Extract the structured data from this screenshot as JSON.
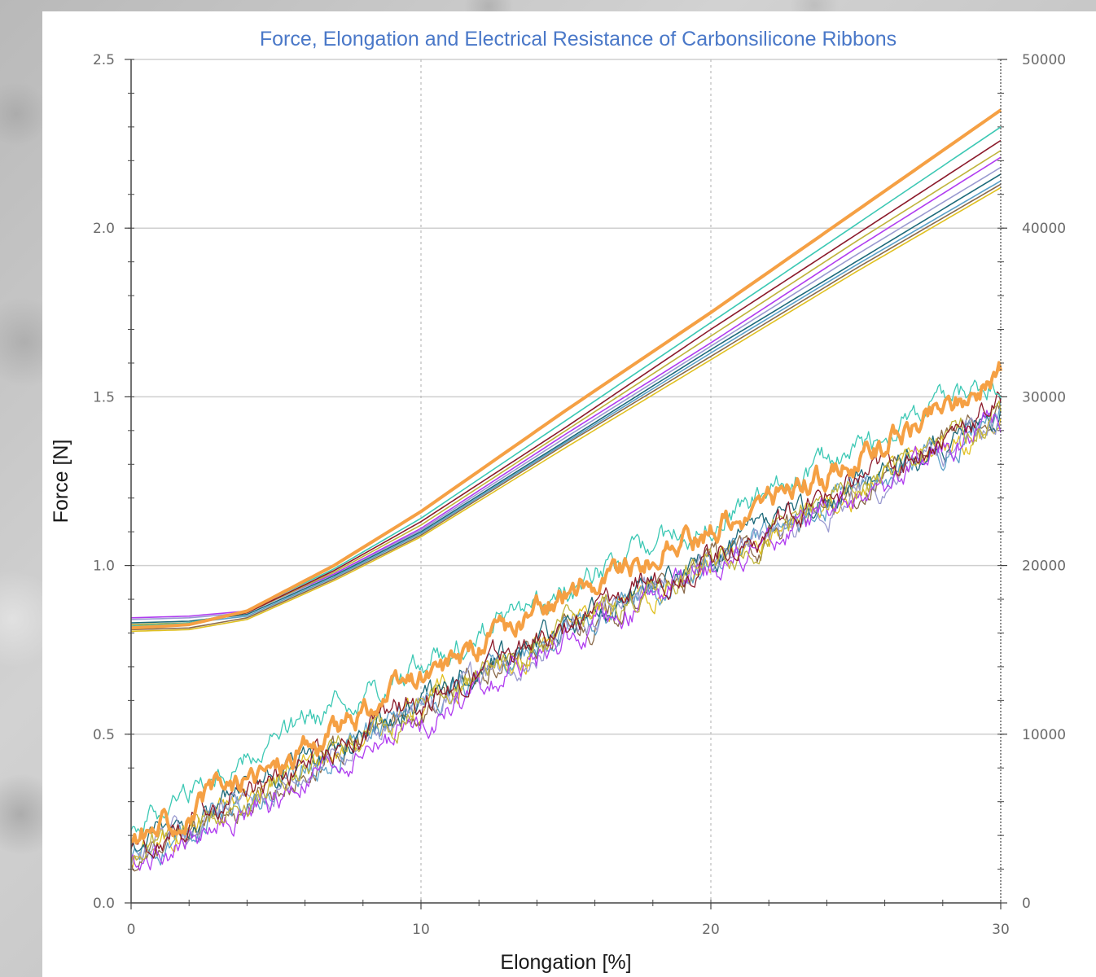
{
  "chart_data": {
    "type": "line",
    "title": "Force, Elongation and Electrical Resistance of Carbonsilicone Ribbons",
    "xlabel": "Elongation [%]",
    "ylabel": "Force [N]",
    "y2label": "",
    "xlim": [
      0,
      30
    ],
    "ylim": [
      0,
      2.5
    ],
    "y2lim": [
      0,
      50000
    ],
    "x_ticks": [
      "0",
      "10",
      "20",
      "30"
    ],
    "y_ticks": [
      "0.0",
      "0.5",
      "1.0",
      "1.5",
      "2.0",
      "2.5"
    ],
    "y2_ticks": [
      "0",
      "10000",
      "20000",
      "30000",
      "40000",
      "50000"
    ],
    "grid": {
      "horizontal": true,
      "vertical_dotted": true
    },
    "force_series": [
      {
        "color": "#f5a044",
        "values": [
          [
            0,
            0.815
          ],
          [
            2,
            0.825
          ],
          [
            4,
            0.865
          ],
          [
            7,
            1.0
          ],
          [
            10,
            1.16
          ],
          [
            15,
            1.46
          ],
          [
            20,
            1.75
          ],
          [
            25,
            2.05
          ],
          [
            30,
            2.35
          ]
        ]
      },
      {
        "color": "#3cc8b4",
        "values": [
          [
            0,
            0.82
          ],
          [
            2,
            0.83
          ],
          [
            4,
            0.865
          ],
          [
            7,
            0.99
          ],
          [
            10,
            1.14
          ],
          [
            15,
            1.43
          ],
          [
            20,
            1.72
          ],
          [
            25,
            2.01
          ],
          [
            30,
            2.3
          ]
        ]
      },
      {
        "color": "#8b1a2b",
        "values": [
          [
            0,
            0.82
          ],
          [
            2,
            0.83
          ],
          [
            4,
            0.86
          ],
          [
            7,
            0.985
          ],
          [
            10,
            1.13
          ],
          [
            15,
            1.41
          ],
          [
            20,
            1.7
          ],
          [
            25,
            1.98
          ],
          [
            30,
            2.26
          ]
        ]
      },
      {
        "color": "#bfb43a",
        "values": [
          [
            0,
            0.825
          ],
          [
            2,
            0.83
          ],
          [
            4,
            0.86
          ],
          [
            7,
            0.98
          ],
          [
            10,
            1.12
          ],
          [
            15,
            1.4
          ],
          [
            20,
            1.68
          ],
          [
            25,
            1.96
          ],
          [
            30,
            2.23
          ]
        ]
      },
      {
        "color": "#b03cf0",
        "values": [
          [
            0,
            0.845
          ],
          [
            2,
            0.85
          ],
          [
            4,
            0.865
          ],
          [
            7,
            0.975
          ],
          [
            10,
            1.11
          ],
          [
            15,
            1.39
          ],
          [
            20,
            1.66
          ],
          [
            25,
            1.94
          ],
          [
            30,
            2.21
          ]
        ]
      },
      {
        "color": "#9a9ad0",
        "values": [
          [
            0,
            0.84
          ],
          [
            2,
            0.845
          ],
          [
            4,
            0.86
          ],
          [
            7,
            0.975
          ],
          [
            10,
            1.105
          ],
          [
            15,
            1.38
          ],
          [
            20,
            1.65
          ],
          [
            25,
            1.92
          ],
          [
            30,
            2.18
          ]
        ]
      },
      {
        "color": "#1c6a7a",
        "values": [
          [
            0,
            0.83
          ],
          [
            2,
            0.835
          ],
          [
            4,
            0.855
          ],
          [
            7,
            0.97
          ],
          [
            10,
            1.1
          ],
          [
            15,
            1.37
          ],
          [
            20,
            1.64
          ],
          [
            25,
            1.9
          ],
          [
            30,
            2.16
          ]
        ]
      },
      {
        "color": "#5aa0c8",
        "values": [
          [
            0,
            0.825
          ],
          [
            2,
            0.83
          ],
          [
            4,
            0.85
          ],
          [
            7,
            0.965
          ],
          [
            10,
            1.095
          ],
          [
            15,
            1.365
          ],
          [
            20,
            1.63
          ],
          [
            25,
            1.89
          ],
          [
            30,
            2.14
          ]
        ]
      },
      {
        "color": "#8a6a4a",
        "values": [
          [
            0,
            0.81
          ],
          [
            2,
            0.815
          ],
          [
            4,
            0.845
          ],
          [
            7,
            0.96
          ],
          [
            10,
            1.09
          ],
          [
            15,
            1.36
          ],
          [
            20,
            1.62
          ],
          [
            25,
            1.88
          ],
          [
            30,
            2.13
          ]
        ]
      },
      {
        "color": "#e0c020",
        "values": [
          [
            0,
            0.805
          ],
          [
            2,
            0.81
          ],
          [
            4,
            0.84
          ],
          [
            7,
            0.955
          ],
          [
            10,
            1.085
          ],
          [
            15,
            1.35
          ],
          [
            20,
            1.61
          ],
          [
            25,
            1.87
          ],
          [
            30,
            2.12
          ]
        ]
      }
    ],
    "resistance_series": [
      {
        "color": "#f5a044",
        "values": [
          [
            0,
            3600
          ],
          [
            5,
            8200
          ],
          [
            10,
            13200
          ],
          [
            15,
            18200
          ],
          [
            20,
            22200
          ],
          [
            25,
            26300
          ],
          [
            30,
            31500
          ]
        ]
      },
      {
        "color": "#3cc8b4",
        "values": [
          [
            0,
            4800
          ],
          [
            5,
            9600
          ],
          [
            10,
            14200
          ],
          [
            15,
            18600
          ],
          [
            20,
            22800
          ],
          [
            25,
            27000
          ],
          [
            30,
            31200
          ]
        ]
      },
      {
        "color": "#8b1a2b",
        "values": [
          [
            0,
            3200
          ],
          [
            5,
            7600
          ],
          [
            10,
            12000
          ],
          [
            15,
            16500
          ],
          [
            20,
            20700
          ],
          [
            25,
            24800
          ],
          [
            30,
            29600
          ]
        ]
      },
      {
        "color": "#bfb43a",
        "values": [
          [
            0,
            2800
          ],
          [
            5,
            7200
          ],
          [
            10,
            11800
          ],
          [
            15,
            16200
          ],
          [
            20,
            20200
          ],
          [
            25,
            24400
          ],
          [
            30,
            29000
          ]
        ]
      },
      {
        "color": "#b03cf0",
        "values": [
          [
            0,
            2400
          ],
          [
            5,
            6000
          ],
          [
            10,
            10800
          ],
          [
            15,
            15400
          ],
          [
            20,
            19600
          ],
          [
            25,
            23800
          ],
          [
            30,
            28800
          ]
        ]
      },
      {
        "color": "#9a9ad0",
        "values": [
          [
            0,
            2500
          ],
          [
            5,
            7000
          ],
          [
            10,
            11600
          ],
          [
            15,
            16000
          ],
          [
            20,
            20000
          ],
          [
            25,
            24200
          ],
          [
            30,
            28600
          ]
        ]
      },
      {
        "color": "#1c6a7a",
        "values": [
          [
            0,
            3000
          ],
          [
            5,
            7400
          ],
          [
            10,
            11900
          ],
          [
            15,
            16300
          ],
          [
            20,
            20400
          ],
          [
            25,
            24600
          ],
          [
            30,
            29200
          ]
        ]
      },
      {
        "color": "#5aa0c8",
        "values": [
          [
            0,
            2600
          ],
          [
            5,
            7100
          ],
          [
            10,
            11700
          ],
          [
            15,
            16100
          ],
          [
            20,
            20100
          ],
          [
            25,
            24300
          ],
          [
            30,
            28700
          ]
        ]
      },
      {
        "color": "#8a6a4a",
        "values": [
          [
            0,
            2200
          ],
          [
            5,
            6800
          ],
          [
            10,
            11500
          ],
          [
            15,
            16000
          ],
          [
            20,
            20000
          ],
          [
            25,
            24100
          ],
          [
            30,
            29400
          ]
        ]
      },
      {
        "color": "#e0c020",
        "values": [
          [
            0,
            2700
          ],
          [
            5,
            7300
          ],
          [
            10,
            11800
          ],
          [
            15,
            16200
          ],
          [
            20,
            20200
          ],
          [
            25,
            24300
          ],
          [
            30,
            28500
          ]
        ]
      }
    ]
  }
}
